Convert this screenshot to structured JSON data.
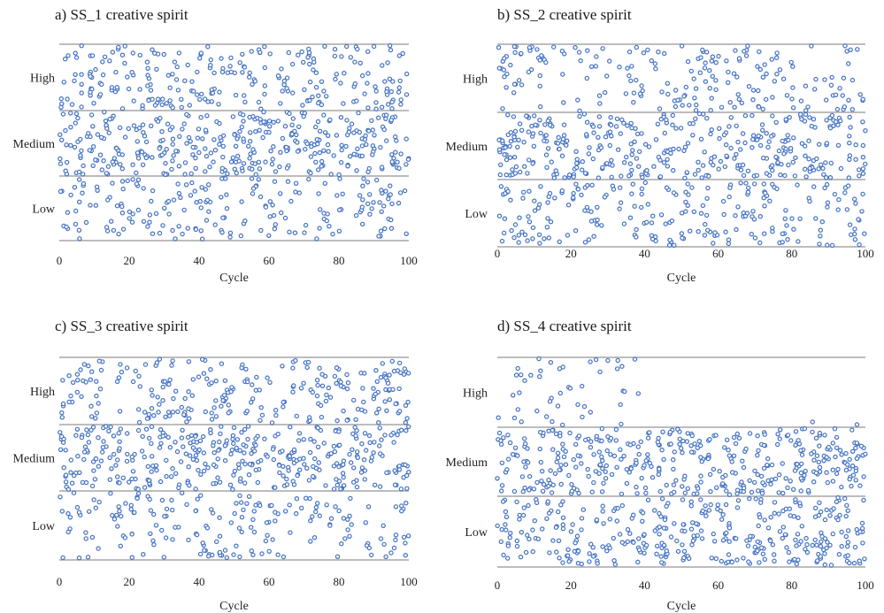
{
  "chart_data": [
    {
      "type": "scatter",
      "title": "a) SS_1 creative spirit",
      "xlabel": "Cycle",
      "xlim": [
        0,
        100
      ],
      "xticks": [
        0,
        20,
        40,
        60,
        80,
        100
      ],
      "bands": [
        "High",
        "Medium",
        "Low"
      ],
      "ylim": [
        0,
        3
      ],
      "grid": "band boundaries",
      "marker_color": "#4472c4",
      "point_count": 800,
      "band_fractions": {
        "High": 0.31,
        "Medium": 0.43,
        "Low": 0.26
      },
      "seed": 11
    },
    {
      "type": "scatter",
      "title": "b) SS_2 creative spirit",
      "xlabel": "Cycle",
      "xlim": [
        0,
        100
      ],
      "xticks": [
        0,
        20,
        40,
        60,
        80,
        100
      ],
      "bands": [
        "High",
        "Medium",
        "Low"
      ],
      "ylim": [
        0,
        3
      ],
      "grid": "band boundaries",
      "marker_color": "#4472c4",
      "point_count": 800,
      "band_fractions": {
        "High": 0.26,
        "Medium": 0.46,
        "Low": 0.28
      },
      "seed": 23
    },
    {
      "type": "scatter",
      "title": "c) SS_3 creative spirit",
      "xlabel": "Cycle",
      "xlim": [
        0,
        100
      ],
      "xticks": [
        0,
        20,
        40,
        60,
        80,
        100
      ],
      "bands": [
        "High",
        "Medium",
        "Low"
      ],
      "ylim": [
        0,
        3
      ],
      "grid": "band boundaries",
      "marker_color": "#4472c4",
      "point_count": 800,
      "band_fractions": {
        "High": 0.28,
        "Medium": 0.46,
        "Low": 0.26
      },
      "seed": 37
    },
    {
      "type": "scatter",
      "title": "d) SS_4 creative spirit",
      "xlabel": "Cycle",
      "xlim": [
        0,
        100
      ],
      "xticks": [
        0,
        20,
        40,
        60,
        80,
        100
      ],
      "bands": [
        "High",
        "Medium",
        "Low"
      ],
      "ylim": [
        0,
        3
      ],
      "grid": "band boundaries",
      "marker_color": "#4472c4",
      "point_count": 800,
      "band_fractions": {
        "High": 0.14,
        "Medium": 0.46,
        "Low": 0.4
      },
      "high_band_sparse_after_cycle": 40,
      "seed": 51
    }
  ]
}
